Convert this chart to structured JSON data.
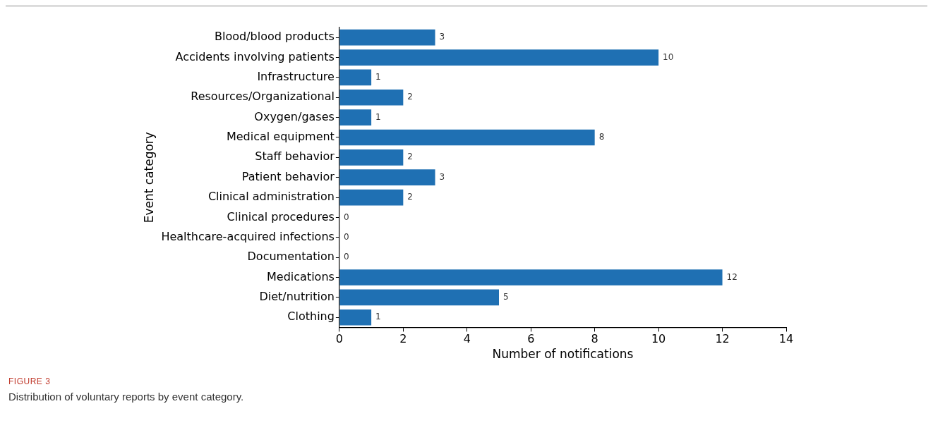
{
  "chart_data": {
    "type": "bar",
    "orientation": "horizontal",
    "xlabel": "Number of notifications",
    "ylabel": "Event category",
    "categories": [
      "Blood/blood products",
      "Accidents involving patients",
      "Infrastructure",
      "Resources/Organizational",
      "Oxygen/gases",
      "Medical equipment",
      "Staff behavior",
      "Patient behavior",
      "Clinical administration",
      "Clinical procedures",
      "Healthcare-acquired infections",
      "Documentation",
      "Medications",
      "Diet/nutrition",
      "Clothing"
    ],
    "values": [
      3,
      10,
      1,
      2,
      1,
      8,
      2,
      3,
      2,
      0,
      0,
      0,
      12,
      5,
      1
    ],
    "color": "#1f70b3",
    "xlim": [
      0,
      14
    ],
    "xticks": [
      0,
      2,
      4,
      6,
      8,
      10,
      12,
      14
    ],
    "grid": false,
    "legend": false,
    "data_labels": true,
    "annotations": [
      "FIGURE 3",
      "Distribution of voluntary reports by event category."
    ]
  }
}
